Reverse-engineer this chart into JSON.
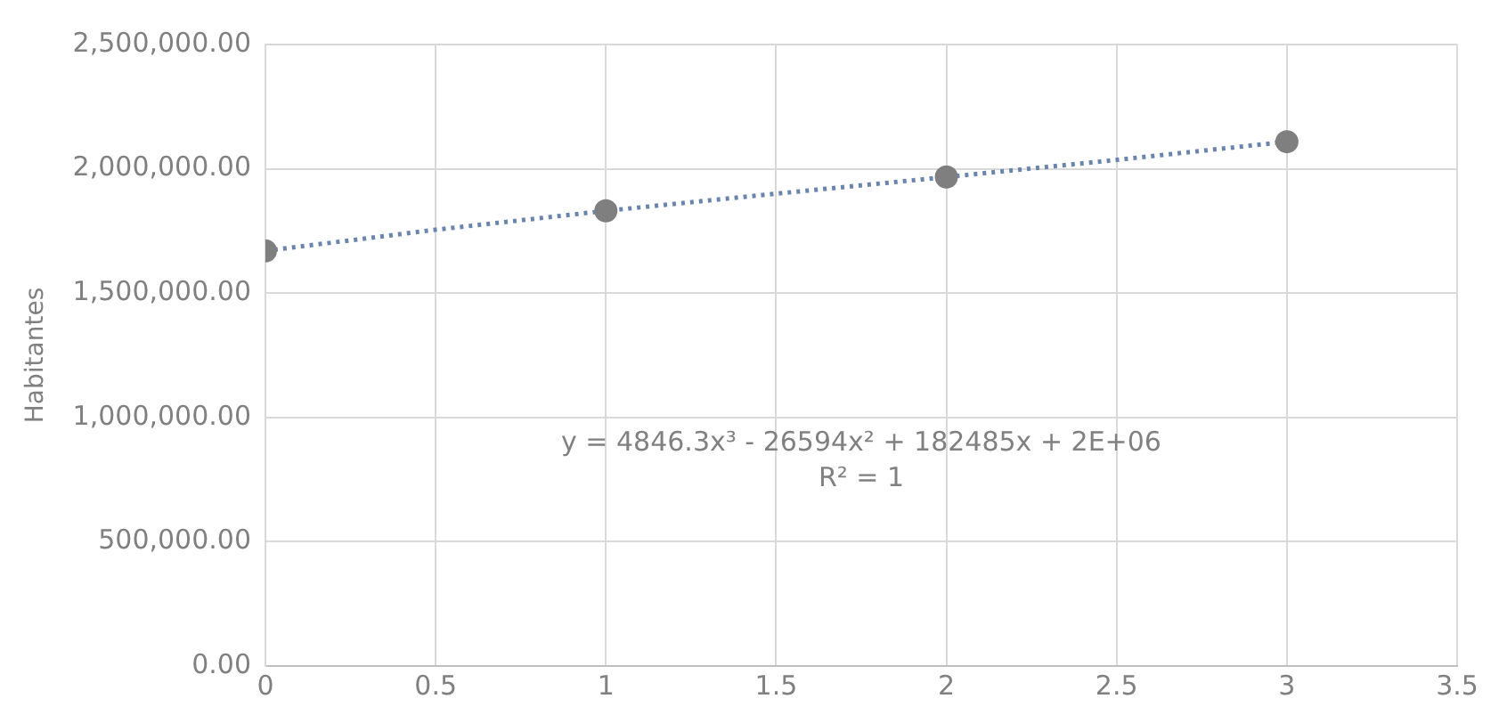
{
  "chart_data": {
    "type": "scatter",
    "ylabel": "Habitantes",
    "x": [
      0,
      1,
      2,
      3
    ],
    "series": [
      {
        "type": "scatter",
        "color": "#7f7f7f",
        "marker": "circle",
        "values": [
          1670000,
          1831000,
          1967000,
          2109000
        ]
      },
      {
        "type": "line",
        "color": "#6a85ad",
        "line_style": "dotted",
        "marker": "none",
        "x": [
          0,
          0.5,
          1,
          1.5,
          2,
          2.5,
          3
        ],
        "values": [
          1670000,
          1755000,
          1831000,
          1900000,
          1967000,
          2036000,
          2109000
        ]
      }
    ],
    "xlim": [
      0,
      3.5
    ],
    "xticks": [
      0,
      0.5,
      1,
      1.5,
      2,
      2.5,
      3,
      3.5
    ],
    "ylim": [
      0,
      2500000
    ],
    "yticks": [
      {
        "value": 0,
        "label": "0.00"
      },
      {
        "value": 500000,
        "label": "500,000.00"
      },
      {
        "value": 1000000,
        "label": "1,000,000.00"
      },
      {
        "value": 1500000,
        "label": "1,500,000.00"
      },
      {
        "value": 2000000,
        "label": "2,000,000.00"
      },
      {
        "value": 2500000,
        "label": "2,500,000.00"
      }
    ],
    "grid": true,
    "legend": false,
    "annotations": [
      "y = 4846.3x³ - 26594x² + 182485x + 2E+06",
      "R² = 1"
    ]
  }
}
